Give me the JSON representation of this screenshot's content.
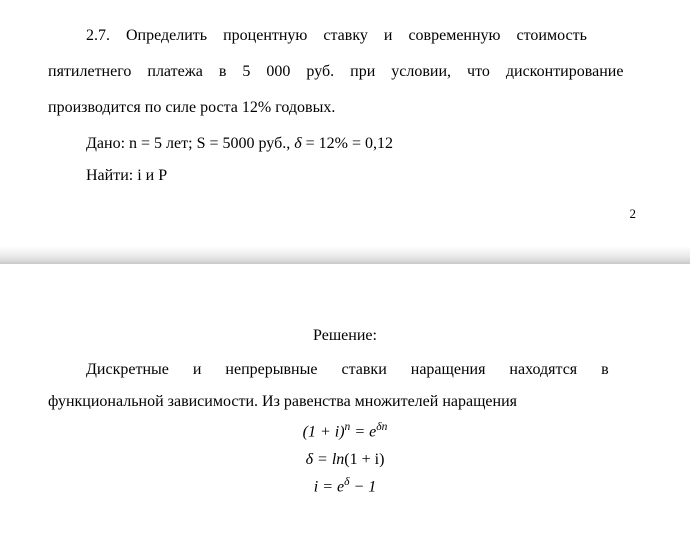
{
  "problem": {
    "number": "2.7.",
    "statement_part1": "Определить процентную ставку и современную стоимость",
    "statement_part2": "пятилетнего платежа в 5 000 руб. при условии, что дисконтирование",
    "statement_part3": "производится по силе роста 12% годовых.",
    "given_label": "Дано:",
    "given_values": " n = 5 лет; S = 5000 руб., ",
    "given_delta": "δ",
    "given_tail": " = 12% = 0,12",
    "find_label": "Найти:",
    "find_values": " i и P"
  },
  "page_number": "2",
  "solution": {
    "title": "Решение:",
    "text_part1": "Дискретные и непрерывные ставки наращения находятся в",
    "text_part2": "функциональной зависимости. Из равенства множителей наращения",
    "formula1_base": "(1 + i)",
    "formula1_exp": "n",
    "formula1_eq": " = e",
    "formula1_exp2": "δn",
    "formula2_lhs": "δ = ln",
    "formula2_rhs": "(1 + i)",
    "formula3_lhs": "i = e",
    "formula3_exp": "δ",
    "formula3_rhs": " − 1"
  },
  "style": {
    "font_family": "Times New Roman",
    "font_size_pt": 12,
    "text_color": "#000000",
    "background_color": "#ffffff",
    "page_break_gradient_top": "#eeeeee",
    "page_break_gradient_mid": "#c8c8c8"
  }
}
